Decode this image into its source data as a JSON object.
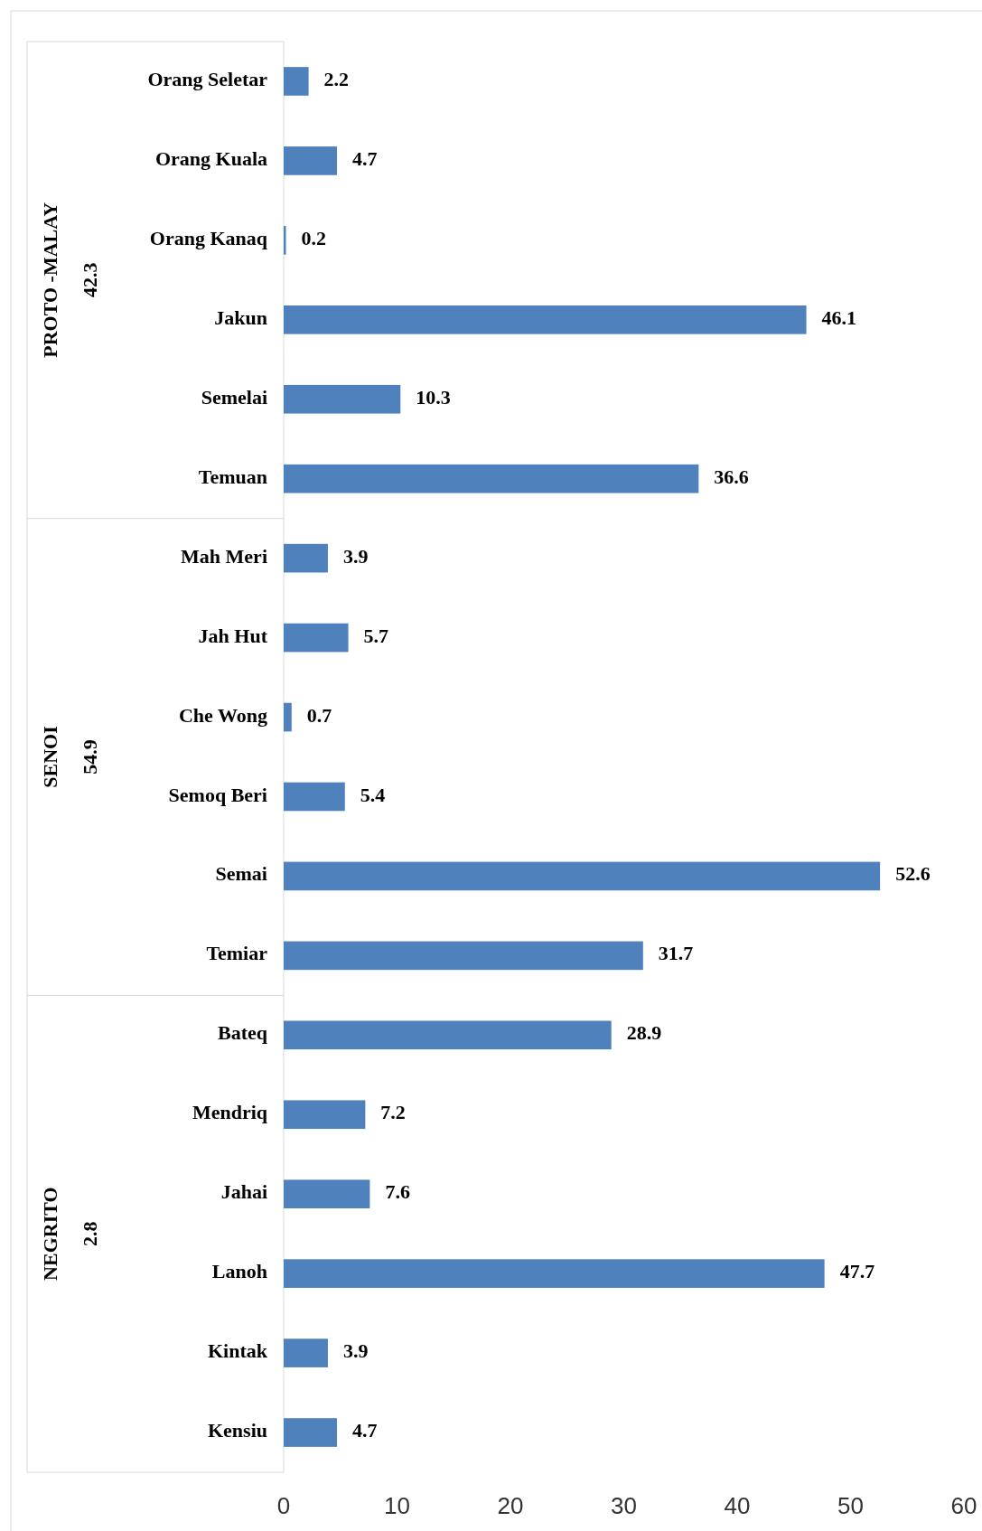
{
  "chart_data": {
    "type": "bar",
    "orientation": "horizontal",
    "categories": [
      "Orang Seletar",
      "Orang Kuala",
      "Orang Kanaq",
      "Jakun",
      "Semelai",
      "Temuan",
      "Mah Meri",
      "Jah Hut",
      "Che Wong",
      "Semoq Beri",
      "Semai",
      "Temiar",
      "Bateq",
      "Mendriq",
      "Jahai",
      "Lanoh",
      "Kintak",
      "Kensiu"
    ],
    "values": [
      2.2,
      4.7,
      0.2,
      46.1,
      10.3,
      36.6,
      3.9,
      5.7,
      0.7,
      5.4,
      52.6,
      31.7,
      28.9,
      7.2,
      7.6,
      47.7,
      3.9,
      4.7
    ],
    "color": "#4f81bd",
    "xlim": [
      0,
      60
    ],
    "xticks": [
      0,
      10,
      20,
      30,
      40,
      50,
      60
    ],
    "grid": false,
    "data_labels": true,
    "annotations": [
      "PROTO -MALAY",
      "42.3",
      "SENOI",
      "54.9",
      "NEGRITO",
      "2.8"
    ]
  }
}
